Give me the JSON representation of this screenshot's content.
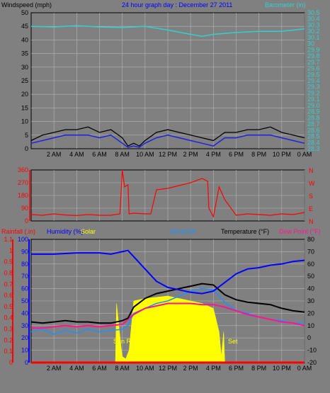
{
  "header": {
    "windspeed_label": "Windspeed (mph)",
    "title": "24 hour graph day : December 27 2011",
    "barometer_label": "Barometer (in)"
  },
  "bottom_header": {
    "rainfall": "Rainfall (.in)",
    "humidity": "Humidity (%)",
    "solar": "Solar",
    "windchill": "Windchill",
    "temperature": "Temperature (°F)",
    "dewpoint": "Dew Point (°F)"
  },
  "annotations": {
    "sunrise": "Sun Rise",
    "sunset": "Set"
  },
  "colors": {
    "background": "#808080",
    "grid": "#b4b4b4",
    "barometer": "#30d0d0",
    "windspeed": "#000000",
    "windavg": "#2020e0",
    "winddir": "#ff0000",
    "rainfall": "#ff0000",
    "humidity": "#0000ff",
    "solar": "#ffff00",
    "windchill": "#1e90ff",
    "temperature": "#000000",
    "dewpoint": "#ff1493"
  },
  "chart_data": [
    {
      "type": "line",
      "name_note": "top panel",
      "x_ticks": [
        "2 AM",
        "4 AM",
        "6 AM",
        "8 AM",
        "10 AM",
        "12 PM",
        "2 PM",
        "4 PM",
        "6 PM",
        "8 PM",
        "10 PM",
        "0 AM"
      ],
      "x_hours": [
        0,
        24
      ],
      "y_left": {
        "label": "Windspeed (mph)",
        "ticks": [
          0,
          5,
          10,
          15,
          20,
          25,
          30,
          35,
          40,
          45,
          50
        ],
        "range": [
          0,
          50
        ]
      },
      "y_right": {
        "label": "Barometer (in)",
        "ticks": [
          "28.3",
          "28.4",
          "28.5",
          "28.6",
          "28.7",
          "28.8",
          "28.9",
          "29.0",
          "29.1",
          "29.2",
          "29.3",
          "29.4",
          "29.5",
          "29.6",
          "29.7",
          "29.8",
          "29.9",
          "30",
          "30.1",
          "30.2",
          "30.3",
          "30.4",
          "30.5"
        ],
        "range": [
          28.3,
          30.5
        ]
      },
      "series": [
        {
          "name": "Barometer (in)",
          "axis": "right",
          "hours": [
            0,
            2,
            4,
            6,
            8,
            10,
            12,
            14,
            15,
            16,
            18,
            20,
            22,
            24
          ],
          "values": [
            30.28,
            30.27,
            30.29,
            30.27,
            30.26,
            30.28,
            30.22,
            30.15,
            30.12,
            30.15,
            30.18,
            30.2,
            30.2,
            30.24
          ]
        },
        {
          "name": "Windspeed (mph)",
          "axis": "left",
          "hours": [
            0,
            1,
            2,
            3,
            4,
            5,
            6,
            7,
            8,
            8.5,
            9,
            9.5,
            10,
            11,
            12,
            13,
            14,
            15,
            16,
            17,
            18,
            19,
            20,
            21,
            22,
            23,
            24
          ],
          "values": [
            3,
            5,
            6,
            7,
            7,
            8,
            6,
            7,
            4,
            1,
            2,
            1,
            3,
            6,
            7,
            6,
            5,
            4,
            3,
            6,
            6,
            7,
            7,
            8,
            6,
            5,
            4
          ]
        },
        {
          "name": "Wind avg (mph)",
          "axis": "left",
          "hours": [
            0,
            1,
            2,
            3,
            4,
            5,
            6,
            7,
            8,
            8.5,
            9,
            9.5,
            10,
            11,
            12,
            13,
            14,
            15,
            16,
            17,
            18,
            19,
            20,
            21,
            22,
            23,
            24
          ],
          "values": [
            2,
            3,
            4,
            5,
            5,
            5,
            4,
            5,
            2,
            0.5,
            1,
            0.5,
            2,
            4,
            5,
            4,
            3,
            2,
            1,
            4,
            4,
            5,
            5,
            5,
            4,
            3,
            2
          ]
        }
      ]
    },
    {
      "type": "line",
      "name_note": "wind direction panel",
      "y_left": {
        "ticks": [
          0,
          90,
          180,
          270,
          360
        ],
        "range": [
          0,
          360
        ]
      },
      "y_right": {
        "ticks": [
          "N",
          "W",
          "S",
          "E",
          "N"
        ]
      },
      "series": [
        {
          "name": "Wind direction (deg)",
          "hours": [
            0,
            1,
            2,
            3,
            4,
            5,
            6,
            7,
            7.8,
            8,
            8.2,
            8.5,
            8.6,
            9,
            10,
            10.5,
            11,
            12,
            13,
            14,
            15,
            15.5,
            15.6,
            16,
            16.5,
            17,
            18,
            19,
            20,
            21,
            22,
            23,
            24
          ],
          "values": [
            45,
            40,
            50,
            42,
            38,
            45,
            40,
            40,
            50,
            360,
            240,
            255,
            50,
            55,
            50,
            50,
            220,
            230,
            250,
            270,
            300,
            280,
            90,
            30,
            240,
            150,
            40,
            50,
            45,
            40,
            50,
            45,
            60
          ]
        }
      ]
    },
    {
      "type": "line",
      "name_note": "bottom panel",
      "y_left_rain": {
        "label": "Rainfall (.in)",
        "ticks": [
          "0",
          "0.1",
          "0.2",
          "0.3",
          "0.4",
          "0.5",
          "0.6",
          "0.7",
          "0.8",
          "0.9",
          "1",
          "1.1"
        ],
        "range": [
          0,
          1.1
        ]
      },
      "y_left_hum": {
        "label": "Humidity (%)",
        "ticks": [
          0,
          10,
          20,
          30,
          40,
          50,
          60,
          70,
          80,
          90,
          100
        ],
        "range": [
          0,
          100
        ]
      },
      "y_right": {
        "label": "Temperature (°F)",
        "ticks": [
          -20,
          -10,
          0,
          10,
          20,
          30,
          40,
          50,
          60,
          70,
          80
        ],
        "range": [
          -20,
          80
        ]
      },
      "series": [
        {
          "name": "Rainfall (.in)",
          "axis": "rain",
          "hours": [
            0,
            24
          ],
          "values": [
            0,
            0
          ]
        },
        {
          "name": "Humidity (%)",
          "axis": "hum",
          "hours": [
            0,
            2,
            4,
            6,
            7,
            8,
            8.5,
            9,
            10,
            11,
            12,
            13,
            14,
            15,
            16,
            17,
            18,
            19,
            20,
            21,
            22,
            23,
            24
          ],
          "values": [
            88,
            88,
            89,
            89,
            88,
            90,
            91,
            86,
            76,
            66,
            61,
            59,
            57,
            56,
            58,
            65,
            72,
            76,
            77,
            79,
            80,
            82,
            83
          ]
        },
        {
          "name": "Solar",
          "axis": "hum",
          "hours": [
            0,
            7.4,
            7.5,
            7.9,
            8.0,
            8.3,
            8.6,
            9,
            10,
            11,
            12,
            13,
            14,
            15,
            16,
            16.5,
            16.7,
            16.9,
            17,
            24
          ],
          "values": [
            0,
            0,
            48,
            12,
            5,
            3,
            10,
            50,
            52,
            53,
            54,
            52,
            50,
            48,
            44,
            25,
            5,
            25,
            0,
            0
          ]
        },
        {
          "name": "Windchill",
          "axis": "right",
          "hours": [
            0,
            1,
            2,
            3,
            4,
            5,
            6,
            7,
            8,
            8.5,
            9,
            10,
            11,
            12,
            13,
            14,
            15,
            16,
            17,
            18,
            19,
            20,
            21,
            22,
            23,
            24
          ],
          "values": [
            5,
            7,
            3,
            6,
            4,
            7,
            5,
            6,
            7,
            10,
            20,
            24,
            28,
            30,
            34,
            38,
            40,
            39,
            29,
            22,
            20,
            17,
            15,
            14,
            12,
            12
          ]
        },
        {
          "name": "Temperature (°F)",
          "axis": "right",
          "hours": [
            0,
            1,
            2,
            3,
            4,
            5,
            6,
            7,
            8,
            8.5,
            9,
            10,
            11,
            12,
            13,
            14,
            15,
            16,
            17,
            18,
            19,
            20,
            21,
            22,
            23,
            24
          ],
          "values": [
            13,
            12,
            13,
            14,
            13,
            13,
            12,
            12,
            14,
            16,
            25,
            32,
            36,
            38,
            40,
            42,
            44,
            43,
            35,
            31,
            29,
            28,
            27,
            24,
            22,
            21
          ]
        },
        {
          "name": "Dew Point (°F)",
          "axis": "right",
          "hours": [
            0,
            1,
            2,
            3,
            4,
            5,
            6,
            7,
            8,
            9,
            10,
            11,
            12,
            13,
            14,
            15,
            16,
            17,
            18,
            19,
            20,
            21,
            22,
            23,
            24
          ],
          "values": [
            8,
            8,
            9,
            10,
            9,
            10,
            9,
            10,
            11,
            19,
            24,
            26,
            28,
            28,
            28,
            27,
            27,
            25,
            22,
            19,
            17,
            15,
            13,
            12,
            10
          ]
        }
      ]
    }
  ]
}
